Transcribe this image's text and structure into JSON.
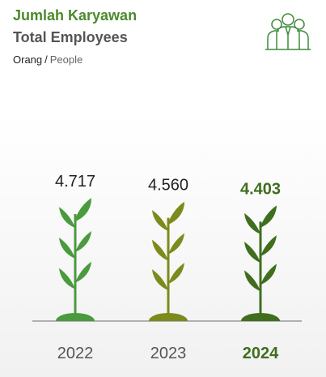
{
  "chart_data": {
    "type": "pictorial-bar",
    "title": "Jumlah Karyawan",
    "subtitle": "Total Employees",
    "unit": "Orang",
    "unit_separator": "/",
    "unit_en": "People",
    "categories": [
      "2022",
      "2023",
      "2024"
    ],
    "values": [
      4717,
      4560,
      4403
    ],
    "value_labels": [
      "4.717",
      "4.560",
      "4.403"
    ],
    "colors": [
      "#4a9a3e",
      "#7d8a1c",
      "#3f6e1e"
    ]
  }
}
